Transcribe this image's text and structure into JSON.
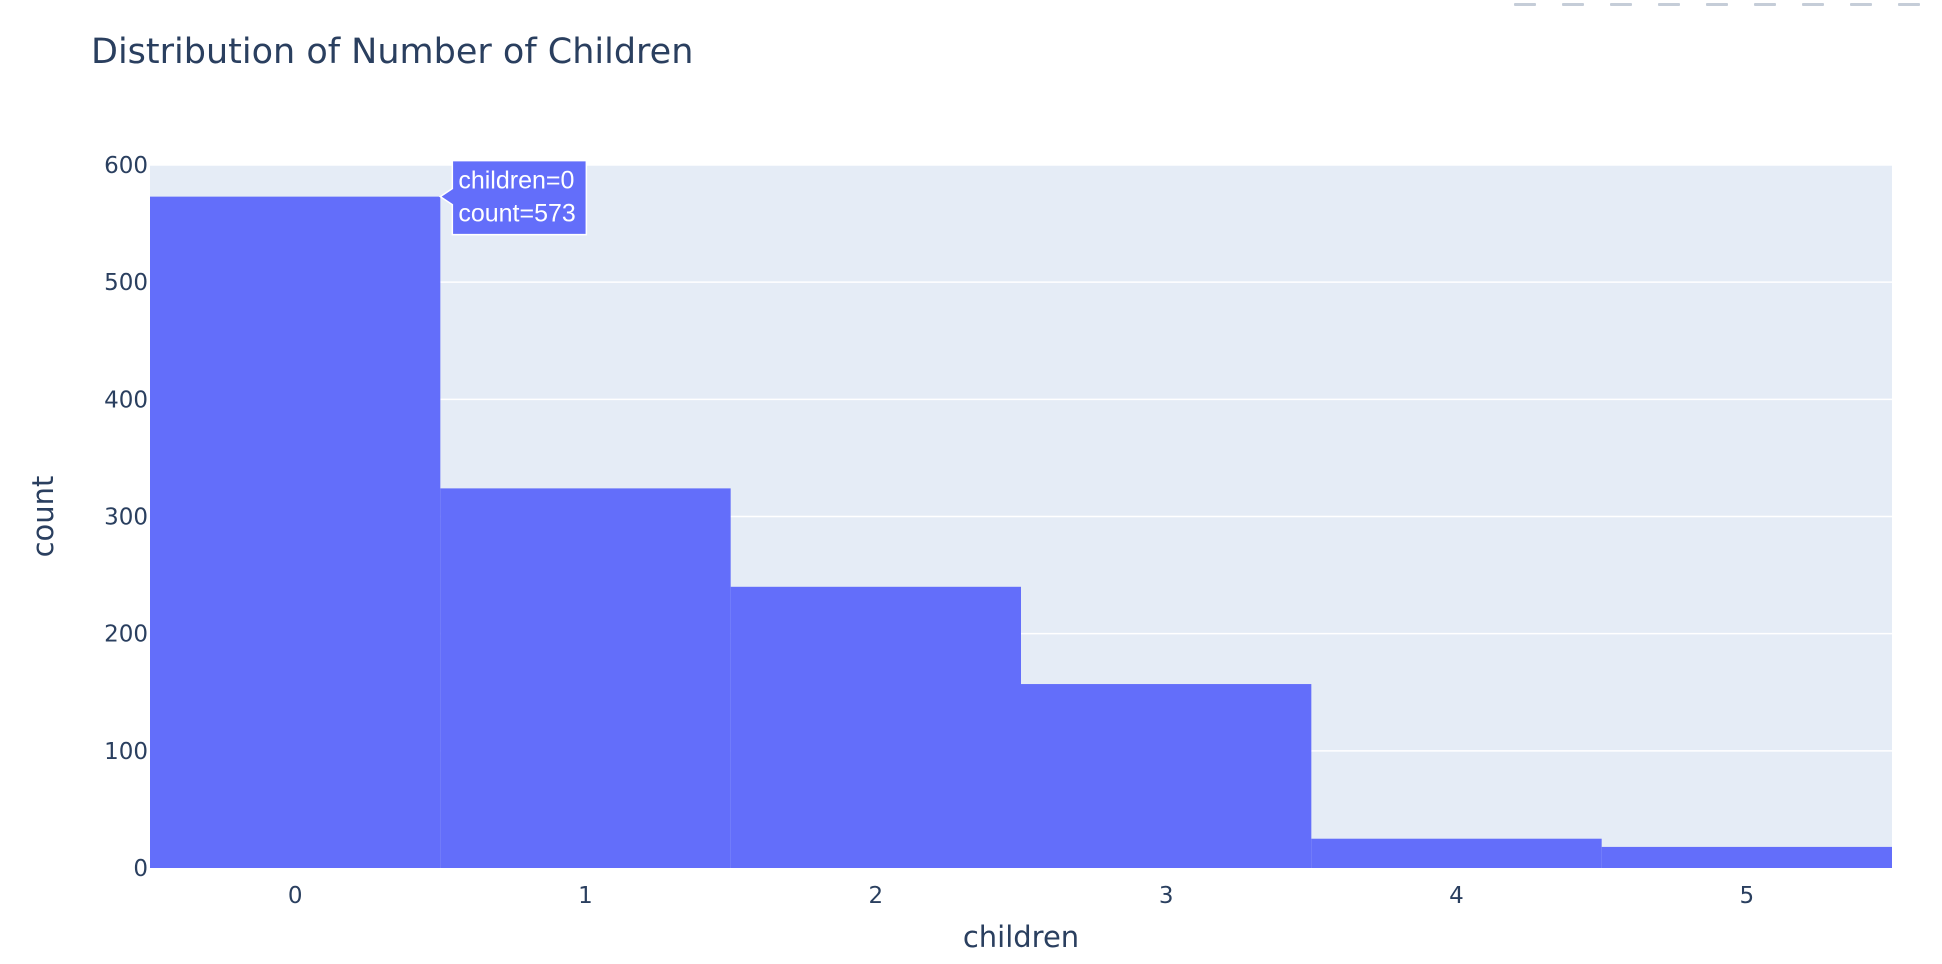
{
  "chart_data": {
    "type": "bar",
    "title": "Distribution of Number of Children",
    "xlabel": "children",
    "ylabel": "count",
    "categories": [
      "0",
      "1",
      "2",
      "3",
      "4",
      "5"
    ],
    "values": [
      573,
      324,
      240,
      157,
      25,
      18
    ],
    "ylim": [
      0,
      600
    ],
    "yticks": [
      "0",
      "100",
      "200",
      "300",
      "400",
      "500",
      "600"
    ],
    "grid": true,
    "bar_color": "#636efa",
    "plot_background": "#e5ecf6",
    "text_color": "#2a3f5f"
  },
  "hover": {
    "line1": "children=0",
    "line2": "count=573",
    "bar_index": 0
  },
  "modebar": {
    "buttons": [
      "camera-icon",
      "zoom-icon",
      "pan-icon",
      "box-select-icon",
      "lasso-icon",
      "zoom-in-icon",
      "zoom-out-icon",
      "autoscale-icon",
      "reset-axes-icon"
    ]
  }
}
